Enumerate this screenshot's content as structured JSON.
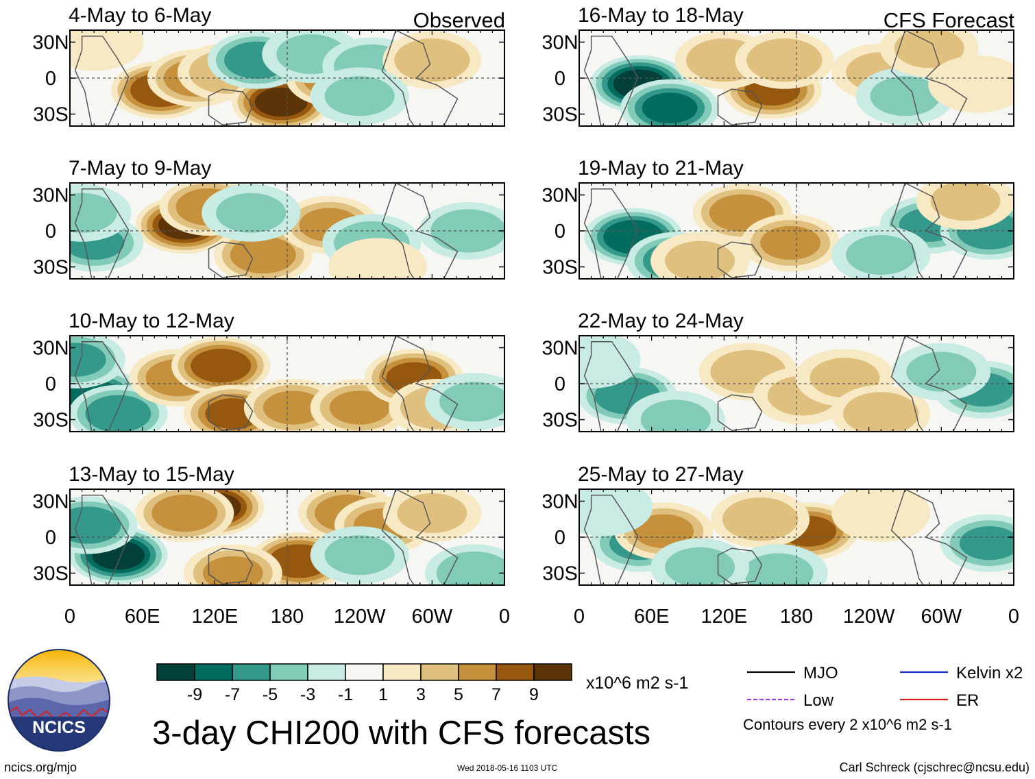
{
  "title": "3-day CHI200 with CFS forecasts",
  "units": "x10^6 m2 s-1",
  "contour_note": "Contours every 2 x10^6 m2 s-1",
  "footer": {
    "left": "ncics.org/mjo",
    "timestamp": "Wed 2018-05-16 1103 UTC",
    "right": "Carl Schreck (cjschrec@ncsu.edu)"
  },
  "logo": {
    "text": "NCICS"
  },
  "column_labels": {
    "observed": "Observed",
    "forecast": "CFS Forecast"
  },
  "colorbar": {
    "colors": [
      "#03403a",
      "#026c5f",
      "#34998a",
      "#82cbb9",
      "#c8ebe3",
      "#f6f6f3",
      "#f6e9c3",
      "#e0c07f",
      "#c6913c",
      "#96570f",
      "#5b3508"
    ],
    "tick_labels": [
      "-9",
      "-7",
      "-5",
      "-3",
      "-1",
      "1",
      "3",
      "5",
      "7",
      "9"
    ]
  },
  "legend": [
    {
      "label": "MJO",
      "color": "#000000",
      "style": "solid"
    },
    {
      "label": "Kelvin x2",
      "color": "#1a2ad0",
      "style": "solid"
    },
    {
      "label": "Low",
      "color": "#9b3bdc",
      "style": "dashed"
    },
    {
      "label": "ER",
      "color": "#d71d1d",
      "style": "solid"
    }
  ],
  "chart_data": {
    "type": "heatmap",
    "title": "3-day CHI200 with CFS forecasts",
    "x_ticks": [
      "0",
      "60E",
      "120E",
      "180",
      "120W",
      "60W",
      "0"
    ],
    "y_ticks": [
      "30N",
      "0",
      "30S"
    ],
    "panels": [
      {
        "column": "observed",
        "period": "4-May to 6-May",
        "features": [
          {
            "lon": 75,
            "lat": -10,
            "value": 8
          },
          {
            "lon": 105,
            "lat": 0,
            "value": 6
          },
          {
            "lon": 130,
            "lat": 5,
            "value": 4
          },
          {
            "lon": 175,
            "lat": -20,
            "value": 9
          },
          {
            "lon": 220,
            "lat": 0,
            "value": 6
          },
          {
            "lon": 155,
            "lat": 15,
            "value": -6
          },
          {
            "lon": 200,
            "lat": 20,
            "value": -3
          },
          {
            "lon": 250,
            "lat": 10,
            "value": -4
          },
          {
            "lon": 300,
            "lat": 15,
            "value": 4
          },
          {
            "lon": 20,
            "lat": 30,
            "value": 2
          },
          {
            "lon": 240,
            "lat": -15,
            "value": -3
          }
        ]
      },
      {
        "column": "observed",
        "period": "7-May to 9-May",
        "features": [
          {
            "lon": 95,
            "lat": 5,
            "value": 9
          },
          {
            "lon": 115,
            "lat": 20,
            "value": 6
          },
          {
            "lon": 160,
            "lat": -20,
            "value": 6
          },
          {
            "lon": 215,
            "lat": 5,
            "value": 5
          },
          {
            "lon": 20,
            "lat": -10,
            "value": -5
          },
          {
            "lon": 10,
            "lat": 15,
            "value": -3
          },
          {
            "lon": 250,
            "lat": -10,
            "value": -4
          },
          {
            "lon": 330,
            "lat": 0,
            "value": -4
          },
          {
            "lon": 150,
            "lat": 15,
            "value": -3
          },
          {
            "lon": 255,
            "lat": -30,
            "value": 2
          }
        ]
      },
      {
        "column": "observed",
        "period": "10-May to 12-May",
        "features": [
          {
            "lon": 20,
            "lat": -10,
            "value": -7
          },
          {
            "lon": 40,
            "lat": -25,
            "value": -6
          },
          {
            "lon": 90,
            "lat": 5,
            "value": 6
          },
          {
            "lon": 125,
            "lat": 15,
            "value": 8
          },
          {
            "lon": 135,
            "lat": -25,
            "value": 7
          },
          {
            "lon": 185,
            "lat": -20,
            "value": 5
          },
          {
            "lon": 240,
            "lat": -20,
            "value": 5
          },
          {
            "lon": 285,
            "lat": 5,
            "value": 7
          },
          {
            "lon": 305,
            "lat": -20,
            "value": 4
          },
          {
            "lon": 5,
            "lat": 20,
            "value": -5
          },
          {
            "lon": 335,
            "lat": -15,
            "value": -3
          }
        ]
      },
      {
        "column": "observed",
        "period": "13-May to 15-May",
        "features": [
          {
            "lon": 40,
            "lat": -15,
            "value": -9
          },
          {
            "lon": 15,
            "lat": 10,
            "value": -6
          },
          {
            "lon": 120,
            "lat": 25,
            "value": 9
          },
          {
            "lon": 95,
            "lat": 20,
            "value": 6
          },
          {
            "lon": 190,
            "lat": -20,
            "value": 8
          },
          {
            "lon": 230,
            "lat": 20,
            "value": 6
          },
          {
            "lon": 260,
            "lat": 10,
            "value": 5
          },
          {
            "lon": 135,
            "lat": -30,
            "value": 5
          },
          {
            "lon": 335,
            "lat": -30,
            "value": -4
          },
          {
            "lon": 300,
            "lat": 20,
            "value": 3
          },
          {
            "lon": 240,
            "lat": -15,
            "value": -3
          }
        ]
      },
      {
        "column": "forecast",
        "period": "16-May to 18-May",
        "features": [
          {
            "lon": 50,
            "lat": -5,
            "value": -9
          },
          {
            "lon": 75,
            "lat": -25,
            "value": -7
          },
          {
            "lon": 160,
            "lat": -10,
            "value": 7
          },
          {
            "lon": 120,
            "lat": 15,
            "value": 4
          },
          {
            "lon": 170,
            "lat": 15,
            "value": 4
          },
          {
            "lon": 250,
            "lat": 5,
            "value": 3
          },
          {
            "lon": 270,
            "lat": -15,
            "value": -3
          },
          {
            "lon": 290,
            "lat": 25,
            "value": 3
          },
          {
            "lon": 330,
            "lat": -5,
            "value": 2
          }
        ]
      },
      {
        "column": "forecast",
        "period": "19-May to 21-May",
        "features": [
          {
            "lon": 45,
            "lat": -5,
            "value": -8
          },
          {
            "lon": 80,
            "lat": -25,
            "value": -6
          },
          {
            "lon": 135,
            "lat": 15,
            "value": 6
          },
          {
            "lon": 175,
            "lat": -10,
            "value": 5
          },
          {
            "lon": 100,
            "lat": -25,
            "value": 3
          },
          {
            "lon": 290,
            "lat": 5,
            "value": -5
          },
          {
            "lon": 340,
            "lat": 0,
            "value": -6
          },
          {
            "lon": 250,
            "lat": -20,
            "value": -3
          },
          {
            "lon": 320,
            "lat": 25,
            "value": 3
          }
        ]
      },
      {
        "column": "forecast",
        "period": "22-May to 24-May",
        "features": [
          {
            "lon": 40,
            "lat": -10,
            "value": -6
          },
          {
            "lon": 80,
            "lat": -30,
            "value": -3
          },
          {
            "lon": 140,
            "lat": 10,
            "value": 4
          },
          {
            "lon": 185,
            "lat": -10,
            "value": 3
          },
          {
            "lon": 220,
            "lat": 5,
            "value": 3
          },
          {
            "lon": 250,
            "lat": -25,
            "value": 4
          },
          {
            "lon": 335,
            "lat": -5,
            "value": -5
          },
          {
            "lon": 300,
            "lat": 10,
            "value": -3
          },
          {
            "lon": 10,
            "lat": 20,
            "value": -2
          }
        ]
      },
      {
        "column": "forecast",
        "period": "25-May to 27-May",
        "features": [
          {
            "lon": 50,
            "lat": -5,
            "value": -5
          },
          {
            "lon": 70,
            "lat": 5,
            "value": 5
          },
          {
            "lon": 190,
            "lat": 5,
            "value": 7
          },
          {
            "lon": 150,
            "lat": 15,
            "value": 4
          },
          {
            "lon": 165,
            "lat": -30,
            "value": -3
          },
          {
            "lon": 340,
            "lat": -5,
            "value": -5
          },
          {
            "lon": 100,
            "lat": -25,
            "value": -3
          },
          {
            "lon": 250,
            "lat": 20,
            "value": 2
          },
          {
            "lon": 20,
            "lat": 25,
            "value": -2
          }
        ]
      }
    ]
  }
}
